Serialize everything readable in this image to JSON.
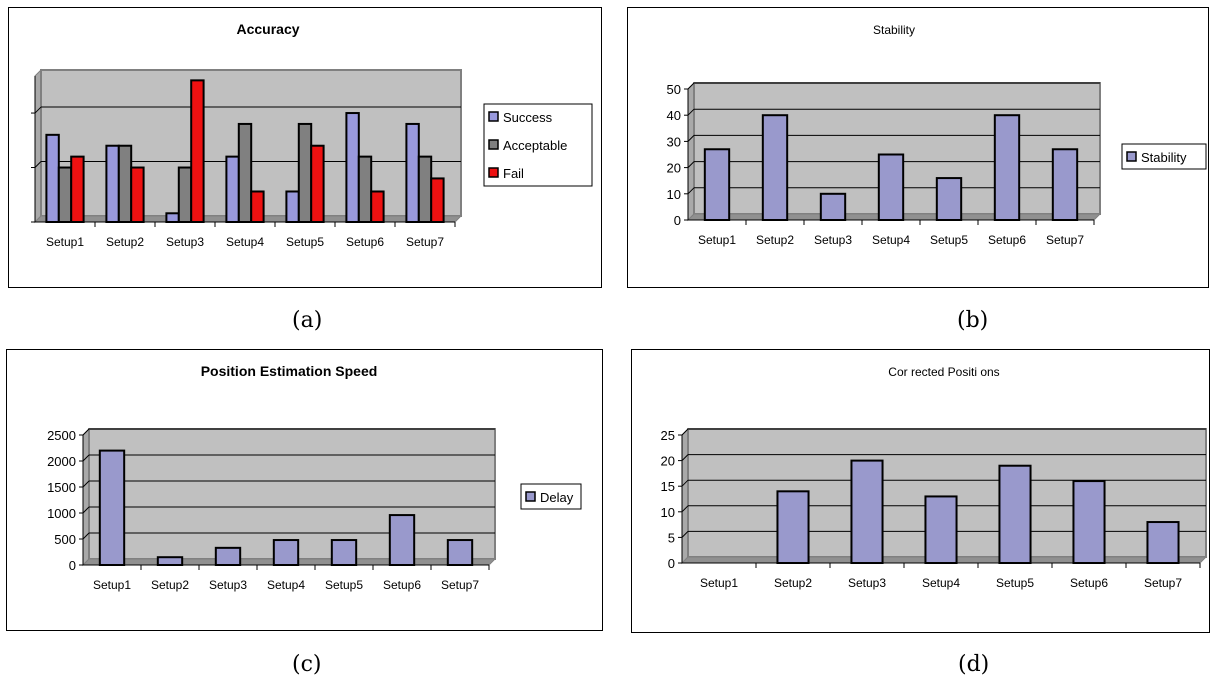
{
  "panels": [
    {
      "caption": "(a)"
    },
    {
      "caption": "(b)"
    },
    {
      "caption": "(c)"
    },
    {
      "caption": "(d)"
    }
  ],
  "chart_data": [
    {
      "type": "bar",
      "title": "Accuracy",
      "title_bold": true,
      "categories": [
        "Setup1",
        "Setup2",
        "Setup3",
        "Setup4",
        "Setup5",
        "Setup6",
        "Setup7"
      ],
      "series": [
        {
          "name": "Success",
          "color": "#9999dd",
          "values": [
            4,
            3.5,
            0.4,
            3,
            1.4,
            5,
            4.5
          ]
        },
        {
          "name": "Acceptable",
          "color": "#808080",
          "values": [
            2.5,
            3.5,
            2.5,
            4.5,
            4.5,
            3,
            3
          ]
        },
        {
          "name": "Fail",
          "color": "#ee1111",
          "values": [
            3,
            2.5,
            6.5,
            1.4,
            3.5,
            1.4,
            2
          ]
        }
      ],
      "ylim": [
        0,
        6.7
      ],
      "gridlines": [
        2.5,
        5
      ],
      "show_yaxis_labels": false,
      "grid": true,
      "plot_bg": "#c0c0c0",
      "legend": "right"
    },
    {
      "type": "bar",
      "title": "Stability",
      "title_bold": false,
      "categories": [
        "Setup1",
        "Setup2",
        "Setup3",
        "Setup4",
        "Setup5",
        "Setup6",
        "Setup7"
      ],
      "series": [
        {
          "name": "Stability",
          "color": "#9999cc",
          "values": [
            27,
            40,
            10,
            25,
            16,
            40,
            27
          ]
        }
      ],
      "ylim": [
        0,
        50
      ],
      "yticks": [
        0,
        10,
        20,
        30,
        40,
        50
      ],
      "grid": true,
      "plot_bg": "#c0c0c0",
      "legend": "right"
    },
    {
      "type": "bar",
      "title": "Position Estimation Speed",
      "title_bold": true,
      "categories": [
        "Setup1",
        "Setup2",
        "Setup3",
        "Setup4",
        "Setup5",
        "Setup6",
        "Setup7"
      ],
      "series": [
        {
          "name": "Delay",
          "color": "#9999cc",
          "values": [
            2200,
            150,
            330,
            480,
            480,
            960,
            480
          ]
        }
      ],
      "ylim": [
        0,
        2500
      ],
      "yticks": [
        0,
        500,
        1000,
        1500,
        2000,
        2500
      ],
      "grid": true,
      "plot_bg": "#c0c0c0",
      "legend": "right"
    },
    {
      "type": "bar",
      "title": "Cor rected Positi ons",
      "title_bold": false,
      "categories": [
        "Setup1",
        "Setup2",
        "Setup3",
        "Setup4",
        "Setup5",
        "Setup6",
        "Setup7"
      ],
      "series": [
        {
          "name": "",
          "color": "#9999cc",
          "values": [
            0,
            14,
            20,
            13,
            19,
            16,
            8
          ]
        }
      ],
      "ylim": [
        0,
        25
      ],
      "yticks": [
        0,
        5,
        10,
        15,
        20,
        25
      ],
      "grid": true,
      "plot_bg": "#c0c0c0",
      "legend": "none"
    }
  ]
}
